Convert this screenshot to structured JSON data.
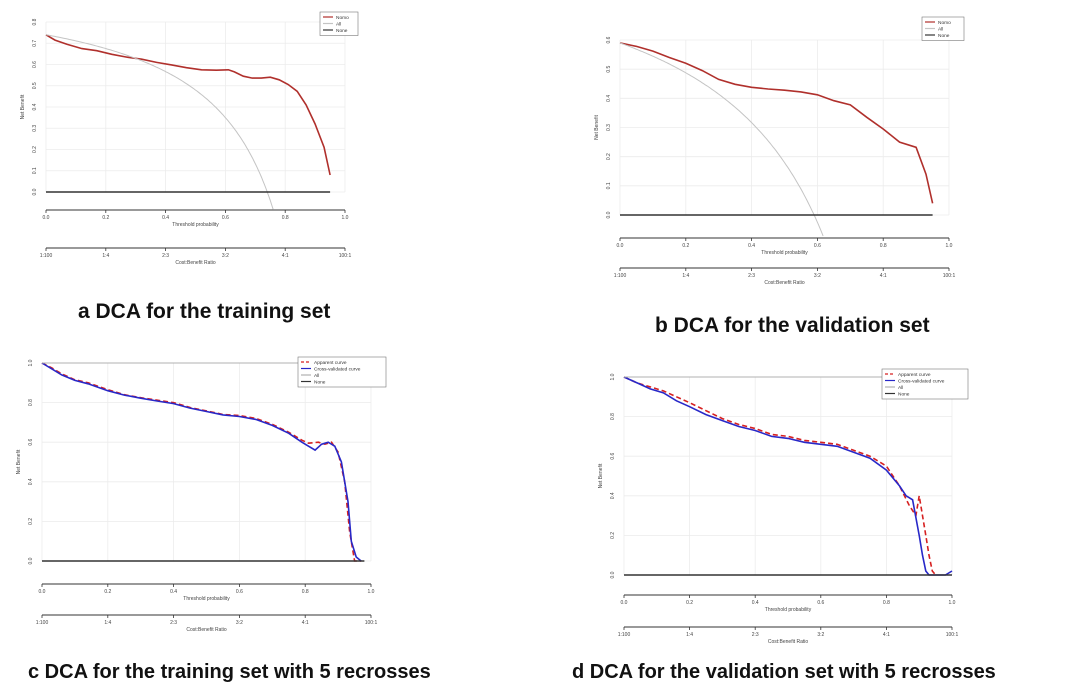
{
  "chart_data": [
    {
      "type": "line",
      "caption": "a DCA for the training set",
      "ylabel": "Net Benefit",
      "xlabel": "Threshold probability",
      "cost_label": "Cost:Benefit Ratio",
      "xlim": [
        0,
        1
      ],
      "ylim": [
        0,
        0.8
      ],
      "x_ticks": [
        "0.0",
        "0.2",
        "0.4",
        "0.6",
        "0.8",
        "1.0"
      ],
      "y_ticks": [
        "0.0",
        "0.1",
        "0.2",
        "0.3",
        "0.4",
        "0.5",
        "0.6",
        "0.7",
        "0.8"
      ],
      "cost_ticks": [
        "1:100",
        "1:4",
        "2:3",
        "3:2",
        "4:1",
        "100:1"
      ],
      "legend": [
        "Nomo",
        "All",
        "None"
      ],
      "series": [
        {
          "name": "Nomo",
          "color": "#b0302c",
          "dashed": false,
          "x": [
            0.0,
            0.03,
            0.07,
            0.12,
            0.17,
            0.22,
            0.27,
            0.32,
            0.37,
            0.42,
            0.47,
            0.52,
            0.57,
            0.61,
            0.63,
            0.66,
            0.69,
            0.72,
            0.75,
            0.78,
            0.81,
            0.84,
            0.87,
            0.9,
            0.93,
            0.95
          ],
          "y": [
            0.74,
            0.715,
            0.695,
            0.675,
            0.665,
            0.648,
            0.635,
            0.625,
            0.61,
            0.598,
            0.585,
            0.575,
            0.573,
            0.575,
            0.565,
            0.545,
            0.536,
            0.536,
            0.54,
            0.528,
            0.506,
            0.474,
            0.41,
            0.32,
            0.21,
            0.08
          ]
        },
        {
          "name": "All",
          "color": "#c4c4c4",
          "dashed": false,
          "all_line": true,
          "prevalence": 0.74
        },
        {
          "name": "None",
          "color": "#333333",
          "dashed": false,
          "x": [
            0,
            0.95
          ],
          "y": [
            0,
            0
          ]
        }
      ]
    },
    {
      "type": "line",
      "caption": "b DCA for the validation set",
      "ylabel": "Net Benefit",
      "xlabel": "Threshold probability",
      "cost_label": "Cost:Benefit Ratio",
      "xlim": [
        0,
        1
      ],
      "ylim": [
        0,
        0.6
      ],
      "x_ticks": [
        "0.0",
        "0.2",
        "0.4",
        "0.6",
        "0.8",
        "1.0"
      ],
      "y_ticks": [
        "0.0",
        "0.1",
        "0.2",
        "0.3",
        "0.4",
        "0.5",
        "0.6"
      ],
      "cost_ticks": [
        "1:100",
        "1:4",
        "2:3",
        "3:2",
        "4:1",
        "100:1"
      ],
      "legend": [
        "Nomo",
        "All",
        "None"
      ],
      "series": [
        {
          "name": "Nomo",
          "color": "#b0302c",
          "dashed": false,
          "x": [
            0.0,
            0.05,
            0.1,
            0.15,
            0.2,
            0.25,
            0.3,
            0.35,
            0.4,
            0.45,
            0.5,
            0.55,
            0.6,
            0.65,
            0.7,
            0.75,
            0.8,
            0.85,
            0.9,
            0.93,
            0.95
          ],
          "y": [
            0.59,
            0.578,
            0.562,
            0.54,
            0.52,
            0.495,
            0.465,
            0.448,
            0.438,
            0.432,
            0.428,
            0.422,
            0.412,
            0.392,
            0.378,
            0.335,
            0.295,
            0.25,
            0.232,
            0.14,
            0.04
          ]
        },
        {
          "name": "All",
          "color": "#c4c4c4",
          "dashed": false,
          "all_line": true,
          "prevalence": 0.59
        },
        {
          "name": "None",
          "color": "#333333",
          "dashed": false,
          "x": [
            0,
            0.95
          ],
          "y": [
            0,
            0
          ]
        }
      ]
    },
    {
      "type": "line",
      "caption": "c DCA for the training set with 5 recrosses",
      "ylabel": "Net Benefit",
      "xlabel": "Threshold probability",
      "cost_label": "Cost:Benefit Ratio",
      "xlim": [
        0,
        1
      ],
      "ylim": [
        0,
        1.0
      ],
      "x_ticks": [
        "0.0",
        "0.2",
        "0.4",
        "0.6",
        "0.8",
        "1.0"
      ],
      "y_ticks": [
        "0.0",
        "0.2",
        "0.4",
        "0.6",
        "0.8",
        "1.0"
      ],
      "cost_ticks": [
        "1:100",
        "1:4",
        "2:3",
        "3:2",
        "4:1",
        "100:1"
      ],
      "legend": [
        "Apparent curve",
        "Cross-validated curve",
        "All",
        "None"
      ],
      "series": [
        {
          "name": "Apparent curve",
          "color": "#d62020",
          "dashed": true,
          "x": [
            0.0,
            0.03,
            0.06,
            0.1,
            0.14,
            0.2,
            0.25,
            0.3,
            0.35,
            0.4,
            0.45,
            0.5,
            0.55,
            0.6,
            0.65,
            0.7,
            0.75,
            0.79,
            0.81,
            0.84,
            0.86,
            0.88,
            0.9,
            0.92,
            0.935,
            0.95,
            0.97
          ],
          "y": [
            1.0,
            0.975,
            0.945,
            0.915,
            0.9,
            0.865,
            0.84,
            0.825,
            0.812,
            0.8,
            0.775,
            0.758,
            0.74,
            0.735,
            0.72,
            0.69,
            0.65,
            0.61,
            0.595,
            0.6,
            0.59,
            0.6,
            0.55,
            0.4,
            0.15,
            0.0,
            0.0
          ]
        },
        {
          "name": "Cross-validated curve",
          "color": "#2828c8",
          "dashed": false,
          "x": [
            0.0,
            0.03,
            0.06,
            0.1,
            0.14,
            0.2,
            0.25,
            0.3,
            0.35,
            0.4,
            0.45,
            0.5,
            0.55,
            0.6,
            0.65,
            0.7,
            0.75,
            0.79,
            0.81,
            0.83,
            0.85,
            0.87,
            0.89,
            0.91,
            0.93,
            0.94,
            0.955,
            0.97
          ],
          "y": [
            1.0,
            0.97,
            0.94,
            0.912,
            0.895,
            0.86,
            0.838,
            0.822,
            0.808,
            0.795,
            0.772,
            0.755,
            0.738,
            0.73,
            0.715,
            0.685,
            0.645,
            0.6,
            0.58,
            0.56,
            0.59,
            0.6,
            0.58,
            0.5,
            0.3,
            0.1,
            0.02,
            0.0
          ]
        },
        {
          "name": "All",
          "color": "#b0b0b0",
          "dashed": false,
          "all_line": true,
          "prevalence": 1.0
        },
        {
          "name": "None",
          "color": "#333333",
          "dashed": false,
          "x": [
            0,
            0.98
          ],
          "y": [
            0,
            0
          ]
        }
      ]
    },
    {
      "type": "line",
      "caption": "d DCA for the validation set with 5 recrosses",
      "ylabel": "Net Benefit",
      "xlabel": "Threshold probability",
      "cost_label": "Cost:Benefit Ratio",
      "xlim": [
        0,
        1
      ],
      "ylim": [
        0,
        1.0
      ],
      "x_ticks": [
        "0.0",
        "0.2",
        "0.4",
        "0.6",
        "0.8",
        "1.0"
      ],
      "y_ticks": [
        "0.0",
        "0.2",
        "0.4",
        "0.6",
        "0.8",
        "1.0"
      ],
      "cost_ticks": [
        "1:100",
        "1:4",
        "2:3",
        "3:2",
        "4:1",
        "100:1"
      ],
      "legend": [
        "Apparent curve",
        "Cross-validated curve",
        "All",
        "None"
      ],
      "series": [
        {
          "name": "Apparent curve",
          "color": "#d62020",
          "dashed": true,
          "x": [
            0.0,
            0.04,
            0.08,
            0.12,
            0.16,
            0.2,
            0.25,
            0.3,
            0.35,
            0.4,
            0.45,
            0.5,
            0.55,
            0.6,
            0.65,
            0.7,
            0.75,
            0.8,
            0.84,
            0.87,
            0.89,
            0.9,
            0.91,
            0.92,
            0.93,
            0.94,
            0.95
          ],
          "y": [
            1.0,
            0.97,
            0.95,
            0.93,
            0.9,
            0.87,
            0.83,
            0.79,
            0.76,
            0.74,
            0.71,
            0.7,
            0.68,
            0.67,
            0.66,
            0.63,
            0.6,
            0.55,
            0.45,
            0.35,
            0.3,
            0.4,
            0.3,
            0.2,
            0.1,
            0.02,
            0.0
          ]
        },
        {
          "name": "Cross-validated curve",
          "color": "#2828c8",
          "dashed": false,
          "x": [
            0.0,
            0.04,
            0.08,
            0.12,
            0.16,
            0.2,
            0.25,
            0.3,
            0.35,
            0.4,
            0.45,
            0.5,
            0.55,
            0.6,
            0.65,
            0.7,
            0.75,
            0.8,
            0.84,
            0.86,
            0.88,
            0.9,
            0.91,
            0.92,
            0.93,
            0.98,
            1.0
          ],
          "y": [
            1.0,
            0.97,
            0.94,
            0.92,
            0.88,
            0.85,
            0.81,
            0.78,
            0.75,
            0.73,
            0.7,
            0.69,
            0.67,
            0.66,
            0.65,
            0.62,
            0.59,
            0.53,
            0.45,
            0.4,
            0.38,
            0.2,
            0.1,
            0.02,
            0.0,
            0.0,
            0.02
          ]
        },
        {
          "name": "All",
          "color": "#b0b0b0",
          "dashed": false,
          "all_line": true,
          "prevalence": 1.0
        },
        {
          "name": "None",
          "color": "#333333",
          "dashed": false,
          "x": [
            0,
            1.0
          ],
          "y": [
            0,
            0
          ]
        }
      ]
    }
  ]
}
